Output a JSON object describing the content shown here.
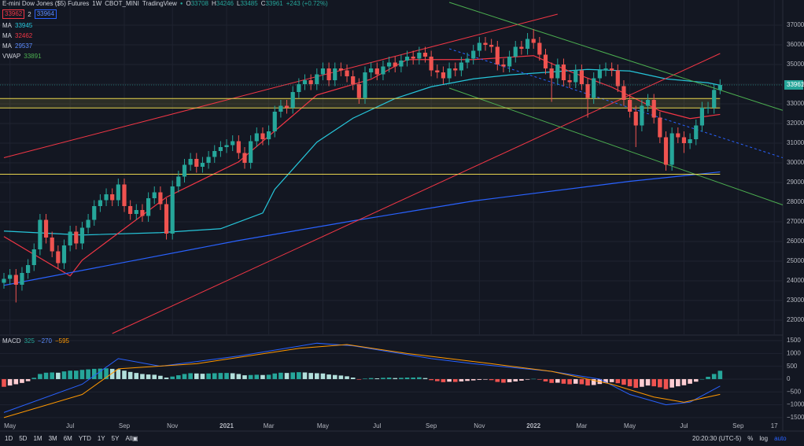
{
  "ui": {
    "header": {
      "title": "E-mini Dow Jones ($5) Futures",
      "interval": "1W",
      "exchange": "CBOT_MINI",
      "source": "TradingView",
      "o": "O",
      "h": "H",
      "l": "L",
      "c": "C",
      "change": "+243 (+0.72%)"
    },
    "pair": {
      "left": "33962",
      "count": "2",
      "right": "33964"
    },
    "vwap": {
      "name": "VWAP",
      "value": "33891"
    },
    "toolbar": {
      "ranges": [
        "1D",
        "5D",
        "1M",
        "3M",
        "6M",
        "YTD",
        "1Y",
        "5Y",
        "All"
      ],
      "time": "20:20:30 (UTC-5)",
      "percent": "%",
      "log": "log",
      "auto": "auto"
    }
  },
  "chart_data": [
    {
      "type": "candlestick",
      "title": "E-mini Dow Jones ($5) Futures",
      "up_color": "#26a69a",
      "down_color": "#ef5350",
      "grid": true,
      "categories": [
        null,
        "May",
        null,
        null,
        null,
        null,
        null,
        null,
        null,
        null,
        null,
        "Jul",
        null,
        null,
        null,
        null,
        null,
        null,
        null,
        null,
        "Sep",
        null,
        null,
        null,
        null,
        null,
        null,
        null,
        "Nov",
        null,
        null,
        null,
        null,
        null,
        null,
        null,
        null,
        "2021",
        null,
        null,
        null,
        null,
        null,
        null,
        "Mar",
        null,
        null,
        null,
        null,
        null,
        null,
        null,
        null,
        "May",
        null,
        null,
        null,
        null,
        null,
        null,
        null,
        null,
        "Jul",
        null,
        null,
        null,
        null,
        null,
        null,
        null,
        null,
        "Sep",
        null,
        null,
        null,
        null,
        null,
        null,
        null,
        "Nov",
        null,
        null,
        null,
        null,
        null,
        null,
        null,
        null,
        "2022",
        null,
        null,
        null,
        null,
        null,
        null,
        null,
        "Mar",
        null,
        null,
        null,
        null,
        null,
        null,
        null,
        "May",
        null,
        null,
        null,
        null,
        null,
        null,
        null,
        null,
        "Jul",
        null,
        null,
        null,
        null,
        null,
        null,
        null,
        null,
        "Sep",
        null,
        null,
        null,
        null,
        null,
        "17"
      ],
      "open": [
        23900,
        24100,
        24300,
        23800,
        24400,
        24800,
        25600,
        27100,
        26200,
        25500,
        24900,
        25800,
        26500,
        25900,
        26700,
        27100,
        27800,
        28100,
        28400,
        28100,
        28900,
        27800,
        27400,
        27600,
        27300,
        28200,
        28500,
        27900,
        26400,
        28800,
        29300,
        29900,
        30200,
        29800,
        30000,
        30300,
        30600,
        30800,
        30900,
        31100,
        30500,
        30000,
        31100,
        31500,
        31200,
        31600,
        32600,
        32900,
        32800,
        33600,
        34000,
        34200,
        34000,
        34500,
        34800,
        34200,
        34800,
        34700,
        34400,
        34000,
        33300,
        34600,
        34800,
        34500,
        34900,
        35100,
        34900,
        35200,
        35400,
        35300,
        35600,
        35400,
        34700,
        34600,
        34300,
        34800,
        34700,
        35100,
        35300,
        35700,
        36100,
        36000,
        35900,
        35000,
        34900,
        35400,
        35900,
        35800,
        36300,
        36100,
        35500,
        34800,
        34300,
        35000,
        34200,
        34100,
        34700,
        34000,
        33300,
        34300,
        34700,
        34800,
        34700,
        33900,
        33200,
        32600,
        31900,
        32900,
        33200,
        32300,
        31300,
        29900,
        31500,
        31300,
        31000,
        31200,
        31900,
        32800,
        32800,
        33708,
        null,
        null,
        null,
        null,
        null,
        null,
        null,
        null,
        null
      ],
      "high": [
        24400,
        24600,
        24600,
        24700,
        25100,
        25900,
        27400,
        27400,
        26500,
        25800,
        26100,
        26800,
        26800,
        27000,
        27400,
        28100,
        28400,
        28700,
        28700,
        29200,
        29200,
        28100,
        27900,
        27900,
        28500,
        28800,
        28800,
        28200,
        29100,
        29600,
        30200,
        30500,
        30500,
        30300,
        30600,
        30900,
        31100,
        31200,
        31400,
        31400,
        30800,
        31400,
        31800,
        31800,
        31900,
        32900,
        33200,
        33200,
        33900,
        34300,
        34500,
        34500,
        34800,
        35100,
        35100,
        35100,
        35100,
        35000,
        34700,
        34300,
        34900,
        35100,
        35100,
        35200,
        35400,
        35400,
        35500,
        35700,
        35700,
        35900,
        35900,
        35700,
        35000,
        34900,
        35100,
        35100,
        35400,
        35600,
        36000,
        36400,
        36400,
        36300,
        36200,
        35300,
        35700,
        36200,
        36200,
        36600,
        36800,
        36400,
        35800,
        35100,
        35300,
        35300,
        34500,
        35000,
        35000,
        34300,
        34600,
        35000,
        35100,
        35100,
        35000,
        34200,
        33500,
        32900,
        33200,
        33500,
        33500,
        32600,
        31600,
        31800,
        31800,
        31600,
        31500,
        32200,
        33100,
        33100,
        34000,
        34246,
        null,
        null,
        null,
        null,
        null,
        null,
        null,
        null,
        null
      ],
      "low": [
        23600,
        23800,
        22900,
        23500,
        24100,
        24500,
        25300,
        25900,
        25200,
        24600,
        24600,
        25500,
        25600,
        25600,
        26400,
        26800,
        27500,
        27800,
        27800,
        27800,
        27500,
        27100,
        27100,
        27000,
        27000,
        27900,
        27600,
        26100,
        26100,
        28500,
        29000,
        29600,
        29500,
        29500,
        29700,
        30000,
        30300,
        30500,
        30600,
        30200,
        29700,
        29700,
        30800,
        30900,
        30900,
        31300,
        32300,
        32500,
        32500,
        33300,
        33700,
        33700,
        33700,
        34200,
        33900,
        33900,
        34400,
        34100,
        33700,
        33000,
        33000,
        34300,
        34200,
        34200,
        34600,
        34600,
        34600,
        34900,
        35000,
        35000,
        35100,
        34400,
        34300,
        34000,
        34000,
        34400,
        34400,
        34800,
        35000,
        35400,
        35700,
        35600,
        34700,
        34600,
        34600,
        35100,
        35500,
        35500,
        35800,
        35200,
        34500,
        33100,
        34000,
        33900,
        33800,
        33800,
        33700,
        32300,
        33000,
        34000,
        34400,
        34400,
        33600,
        32900,
        32300,
        30800,
        31600,
        32600,
        32000,
        31000,
        29600,
        29600,
        31000,
        30500,
        30700,
        30900,
        31600,
        32500,
        32500,
        33485,
        null,
        null,
        null,
        null,
        null,
        null,
        null,
        null,
        null
      ],
      "close": [
        24100,
        24300,
        23800,
        24400,
        24800,
        25600,
        27100,
        26200,
        25500,
        24900,
        25800,
        26500,
        25900,
        26700,
        27100,
        27800,
        28100,
        28400,
        28100,
        28900,
        27800,
        27400,
        27600,
        27300,
        28200,
        28500,
        27900,
        26400,
        28800,
        29300,
        29900,
        30200,
        29800,
        30000,
        30300,
        30600,
        30800,
        30900,
        31100,
        30500,
        30000,
        31100,
        31500,
        31200,
        31600,
        32600,
        32900,
        32800,
        33600,
        34000,
        34200,
        34000,
        34500,
        34800,
        34200,
        34800,
        34700,
        34400,
        34000,
        33300,
        34600,
        34800,
        34500,
        34900,
        35100,
        34900,
        35200,
        35400,
        35300,
        35600,
        35400,
        34700,
        34600,
        34300,
        34800,
        34700,
        35100,
        35300,
        35700,
        36100,
        36000,
        35900,
        35000,
        34900,
        35400,
        35900,
        35800,
        36300,
        36100,
        35500,
        34800,
        34300,
        35000,
        34200,
        34100,
        34700,
        34000,
        33300,
        34300,
        34700,
        34800,
        34700,
        33900,
        33200,
        32600,
        31900,
        32900,
        33200,
        32300,
        31300,
        29900,
        31500,
        31300,
        31000,
        31200,
        31900,
        32800,
        32800,
        33708,
        33961,
        null,
        null,
        null,
        null,
        null,
        null,
        null,
        null,
        null
      ],
      "ylim": [
        21240,
        38280
      ],
      "yticks": [
        22000,
        23000,
        24000,
        25000,
        26000,
        27000,
        28000,
        29000,
        30000,
        31000,
        32000,
        33000,
        34000,
        35000,
        36000,
        37000
      ],
      "series": [
        {
          "name": "MA",
          "color": "#26c6da",
          "x": [
            0,
            13,
            26,
            36,
            43,
            45,
            52,
            58,
            65,
            71,
            78,
            84,
            90,
            97,
            104,
            110,
            117,
            119
          ],
          "values": [
            26530,
            26330,
            26450,
            26650,
            27450,
            28650,
            31050,
            32270,
            33270,
            33870,
            34270,
            34470,
            34600,
            34750,
            34670,
            34270,
            34070,
            33945
          ]
        },
        {
          "name": "MA",
          "color": "#f23645",
          "x": [
            0,
            11,
            13,
            27,
            39,
            52,
            61,
            67,
            78,
            88,
            94,
            101,
            109,
            114,
            119
          ],
          "values": [
            26250,
            24250,
            25050,
            28250,
            30050,
            33450,
            34250,
            35250,
            35250,
            35450,
            34650,
            33850,
            32650,
            32250,
            32462
          ]
        },
        {
          "name": "MA",
          "color": "#2962ff",
          "x": [
            0,
            39,
            58,
            78,
            104,
            119
          ],
          "values": [
            23770,
            26050,
            27050,
            28060,
            29060,
            29537
          ]
        }
      ],
      "drawings": [
        {
          "color": "#f23645",
          "x": [
            0,
            92
          ],
          "y": [
            30260,
            37560
          ]
        },
        {
          "color": "#f23645",
          "x": [
            18,
            119
          ],
          "y": [
            21320,
            35560
          ]
        },
        {
          "color": "#4caf50",
          "x": [
            74,
            129.4
          ],
          "y": [
            38160,
            32670
          ]
        },
        {
          "color": "#4caf50",
          "x": [
            74,
            129.4
          ],
          "y": [
            33800,
            27860
          ]
        },
        {
          "color": "#2962ff",
          "dashed": true,
          "x": [
            74,
            129.4
          ],
          "y": [
            35800,
            30260
          ]
        },
        {
          "color": "#e8d44d",
          "x": [
            -0.7,
            119
          ],
          "y": [
            33270,
            33270
          ]
        },
        {
          "color": "#e8d44d",
          "x": [
            -0.7,
            119
          ],
          "y": [
            32790,
            32790
          ]
        },
        {
          "color": "#e8d44d",
          "x": [
            -0.7,
            119
          ],
          "y": [
            29420,
            29420
          ]
        }
      ],
      "zones": [
        {
          "color": "rgba(232,212,77,0.12)",
          "x": [
            -0.7,
            119
          ],
          "y": [
            32790,
            33270
          ]
        }
      ]
    },
    {
      "type": "macd",
      "title": "MACD",
      "last_labels": [
        "325",
        "−270",
        "−595"
      ],
      "colors": {
        "up": "#26a69a",
        "up_light": "#b2dfdb",
        "down": "#ef5350",
        "down_light": "#ffcdd2"
      },
      "values": [
        -300,
        -250,
        -200,
        -150,
        -80,
        50,
        200,
        250,
        260,
        250,
        300,
        330,
        330,
        360,
        380,
        400,
        410,
        420,
        400,
        380,
        330,
        280,
        240,
        200,
        180,
        170,
        130,
        60,
        100,
        150,
        200,
        230,
        220,
        210,
        220,
        230,
        240,
        240,
        230,
        200,
        150,
        160,
        170,
        160,
        170,
        220,
        250,
        240,
        260,
        270,
        260,
        240,
        230,
        220,
        180,
        160,
        140,
        110,
        60,
        -20,
        20,
        40,
        30,
        50,
        60,
        40,
        50,
        60,
        60,
        70,
        40,
        -40,
        -80,
        -120,
        -100,
        -110,
        -90,
        -70,
        -50,
        -30,
        -20,
        -40,
        -110,
        -140,
        -120,
        -90,
        -60,
        -20,
        10,
        -20,
        -90,
        -150,
        -140,
        -180,
        -200,
        -180,
        -200,
        -250,
        -230,
        -190,
        -150,
        -120,
        -160,
        -220,
        -280,
        -340,
        -300,
        -250,
        -280,
        -320,
        -390,
        -330,
        -280,
        -240,
        -180,
        -100,
        0,
        90,
        200,
        325
      ],
      "series": [
        {
          "color": "#2962ff",
          "x": [
            0,
            13,
            19,
            26,
            39,
            52,
            58,
            71,
            78,
            91,
            99,
            104,
            110,
            114,
            119
          ],
          "values": [
            -1300,
            -200,
            800,
            500,
            900,
            1400,
            1300,
            800,
            600,
            300,
            0,
            -600,
            -1000,
            -900,
            -270
          ]
        },
        {
          "color": "#ff9800",
          "x": [
            0,
            13,
            19,
            32,
            49,
            57,
            67,
            81,
            91,
            101,
            108,
            113,
            119
          ],
          "values": [
            -1500,
            -600,
            400,
            600,
            1200,
            1350,
            1000,
            600,
            300,
            -200,
            -700,
            -900,
            -595
          ]
        }
      ],
      "ylim": [
        -1780,
        1655
      ],
      "yticks": [
        {
          "value": 1500,
          "label": "1500"
        },
        {
          "value": 1000,
          "label": "1000"
        },
        {
          "value": 500,
          "label": "500"
        },
        0,
        {
          "value": -500,
          "label": "−500"
        },
        {
          "value": -1000,
          "label": "−1000"
        },
        {
          "value": -1500,
          "label": "−1500"
        }
      ]
    }
  ]
}
